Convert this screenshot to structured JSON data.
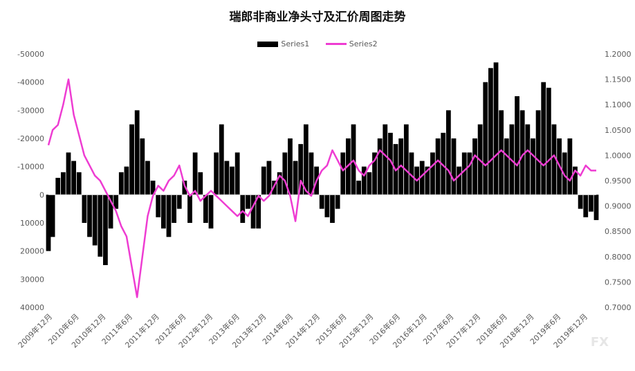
{
  "chart_data": {
    "type": "bar-line-combo",
    "title": "瑞郎非商业净头寸及汇价周图走势",
    "legend": [
      "Series1",
      "Series2"
    ],
    "legend_position": "top",
    "grid": false,
    "watermark": "FX",
    "y_left": {
      "ylim": [
        -50000,
        40000
      ],
      "ticks": [
        -50000,
        -40000,
        -30000,
        -20000,
        -10000,
        0,
        10000,
        20000,
        30000,
        40000
      ],
      "reversed": true
    },
    "y_right": {
      "ylim": [
        0.7,
        1.2
      ],
      "ticks": [
        "1.2000",
        "1.1500",
        "1.1000",
        "1.0500",
        "1.0000",
        "0.9500",
        "0.9000",
        "0.8500",
        "0.8000",
        "0.7500",
        "0.7000"
      ]
    },
    "x_labels": [
      "2009年12月",
      "2010年6月",
      "2010年12月",
      "2011年6月",
      "2011年12月",
      "2012年6月",
      "2012年12月",
      "2013年6月",
      "2013年12月",
      "2014年6月",
      "2014年12月",
      "2015年6月",
      "2015年12月",
      "2016年6月",
      "2016年12月",
      "2017年6月",
      "2017年12月",
      "2018年6月",
      "2018年12月",
      "2019年6月",
      "2019年12月"
    ],
    "series": [
      {
        "name": "Series1",
        "kind": "bar",
        "color": "#000000",
        "x": [
          2009.92,
          2010.0,
          2010.1,
          2010.2,
          2010.3,
          2010.4,
          2010.5,
          2010.6,
          2010.7,
          2010.8,
          2010.9,
          2011.0,
          2011.1,
          2011.2,
          2011.3,
          2011.4,
          2011.5,
          2011.6,
          2011.7,
          2011.8,
          2011.9,
          2012.0,
          2012.1,
          2012.2,
          2012.3,
          2012.4,
          2012.5,
          2012.6,
          2012.7,
          2012.8,
          2012.9,
          2013.0,
          2013.1,
          2013.2,
          2013.3,
          2013.4,
          2013.5,
          2013.6,
          2013.7,
          2013.8,
          2013.9,
          2014.0,
          2014.1,
          2014.2,
          2014.3,
          2014.4,
          2014.5,
          2014.6,
          2014.7,
          2014.8,
          2014.9,
          2015.0,
          2015.1,
          2015.2,
          2015.3,
          2015.4,
          2015.5,
          2015.6,
          2015.7,
          2015.8,
          2015.9,
          2016.0,
          2016.1,
          2016.2,
          2016.3,
          2016.4,
          2016.5,
          2016.6,
          2016.7,
          2016.8,
          2016.9,
          2017.0,
          2017.1,
          2017.2,
          2017.3,
          2017.4,
          2017.5,
          2017.6,
          2017.7,
          2017.8,
          2017.9,
          2018.0,
          2018.1,
          2018.2,
          2018.3,
          2018.4,
          2018.5,
          2018.6,
          2018.7,
          2018.8,
          2018.9,
          2019.0,
          2019.1,
          2019.2,
          2019.3,
          2019.4,
          2019.5,
          2019.6,
          2019.7,
          2019.8,
          2019.9,
          2020.0,
          2020.1,
          2020.2,
          2020.3
        ],
        "values": [
          20000,
          15000,
          -6000,
          -8000,
          -15000,
          -12000,
          -8000,
          10000,
          15000,
          18000,
          22000,
          25000,
          12000,
          5000,
          -8000,
          -10000,
          -25000,
          -30000,
          -20000,
          -12000,
          -5000,
          8000,
          12000,
          15000,
          10000,
          5000,
          -5000,
          10000,
          -15000,
          -8000,
          10000,
          12000,
          -15000,
          -25000,
          -12000,
          -10000,
          -15000,
          10000,
          5000,
          12000,
          12000,
          -10000,
          -12000,
          -5000,
          -8000,
          -15000,
          -20000,
          -12000,
          -18000,
          -25000,
          -15000,
          -10000,
          5000,
          8000,
          10000,
          5000,
          -15000,
          -20000,
          -25000,
          -5000,
          -10000,
          -8000,
          -15000,
          -20000,
          -25000,
          -22000,
          -18000,
          -20000,
          -25000,
          -15000,
          -10000,
          -12000,
          -10000,
          -15000,
          -20000,
          -22000,
          -30000,
          -20000,
          -10000,
          -15000,
          -15000,
          -20000,
          -25000,
          -40000,
          -45000,
          -47000,
          -30000,
          -20000,
          -25000,
          -35000,
          -30000,
          -25000,
          -20000,
          -30000,
          -40000,
          -38000,
          -25000,
          -20000,
          -15000,
          -20000,
          -10000,
          5000,
          8000,
          6000,
          9000
        ]
      },
      {
        "name": "Series2",
        "kind": "line",
        "axis": "right",
        "color": "#ee3cd2",
        "x": [
          2009.92,
          2010.0,
          2010.1,
          2010.2,
          2010.3,
          2010.4,
          2010.5,
          2010.6,
          2010.7,
          2010.8,
          2010.9,
          2011.0,
          2011.1,
          2011.2,
          2011.3,
          2011.4,
          2011.5,
          2011.6,
          2011.7,
          2011.8,
          2011.9,
          2012.0,
          2012.1,
          2012.2,
          2012.3,
          2012.4,
          2012.5,
          2012.6,
          2012.7,
          2012.8,
          2012.9,
          2013.0,
          2013.1,
          2013.2,
          2013.3,
          2013.4,
          2013.5,
          2013.6,
          2013.7,
          2013.8,
          2013.9,
          2014.0,
          2014.1,
          2014.2,
          2014.3,
          2014.4,
          2014.5,
          2014.6,
          2014.7,
          2014.8,
          2014.9,
          2015.0,
          2015.1,
          2015.2,
          2015.3,
          2015.4,
          2015.5,
          2015.6,
          2015.7,
          2015.8,
          2015.9,
          2016.0,
          2016.1,
          2016.2,
          2016.3,
          2016.4,
          2016.5,
          2016.6,
          2016.7,
          2016.8,
          2016.9,
          2017.0,
          2017.1,
          2017.2,
          2017.3,
          2017.4,
          2017.5,
          2017.6,
          2017.7,
          2017.8,
          2017.9,
          2018.0,
          2018.1,
          2018.2,
          2018.3,
          2018.4,
          2018.5,
          2018.6,
          2018.7,
          2018.8,
          2018.9,
          2019.0,
          2019.1,
          2019.2,
          2019.3,
          2019.4,
          2019.5,
          2019.6,
          2019.7,
          2019.8,
          2019.9,
          2020.0,
          2020.1,
          2020.2,
          2020.3
        ],
        "values": [
          1.02,
          1.05,
          1.06,
          1.1,
          1.15,
          1.08,
          1.04,
          1.0,
          0.98,
          0.96,
          0.95,
          0.93,
          0.91,
          0.89,
          0.86,
          0.84,
          0.78,
          0.72,
          0.8,
          0.88,
          0.92,
          0.94,
          0.93,
          0.95,
          0.96,
          0.98,
          0.94,
          0.92,
          0.93,
          0.91,
          0.92,
          0.93,
          0.92,
          0.91,
          0.9,
          0.89,
          0.88,
          0.89,
          0.88,
          0.9,
          0.92,
          0.91,
          0.92,
          0.94,
          0.96,
          0.95,
          0.92,
          0.87,
          0.95,
          0.93,
          0.92,
          0.95,
          0.97,
          0.98,
          1.01,
          0.99,
          0.97,
          0.98,
          0.99,
          0.97,
          0.96,
          0.98,
          0.99,
          1.01,
          1.0,
          0.99,
          0.97,
          0.98,
          0.97,
          0.96,
          0.95,
          0.96,
          0.97,
          0.98,
          0.99,
          0.98,
          0.97,
          0.95,
          0.96,
          0.97,
          0.98,
          1.0,
          0.99,
          0.98,
          0.99,
          1.0,
          1.01,
          1.0,
          0.99,
          0.98,
          1.0,
          1.01,
          1.0,
          0.99,
          0.98,
          0.99,
          1.0,
          0.98,
          0.96,
          0.95,
          0.97,
          0.96,
          0.98,
          0.97,
          0.97
        ]
      }
    ]
  }
}
